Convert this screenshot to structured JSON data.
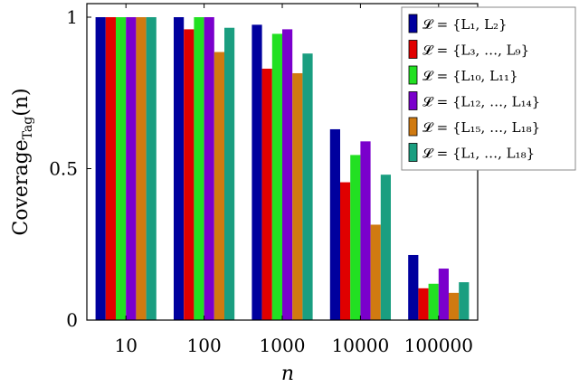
{
  "chart_data": {
    "type": "bar",
    "ylabel": "Coverage",
    "ylabel_sub": "Tag",
    "ylabel_suffix": "(n)",
    "xlabel": "n",
    "categories": [
      "10",
      "100",
      "1000",
      "10000",
      "100000"
    ],
    "ylim": [
      0,
      1.0
    ],
    "yticks": [
      0,
      0.5,
      1
    ],
    "ytick_labels": [
      "0",
      "0.5",
      "1"
    ],
    "grid": false,
    "legend_position": "top-right",
    "series": [
      {
        "name": "𝓛 = {L₁, L₂}",
        "color": "#00009e",
        "values": [
          1.0,
          1.0,
          0.975,
          0.63,
          0.215
        ]
      },
      {
        "name": "𝓛 = {L₃, …, L₉}",
        "color": "#e00000",
        "values": [
          1.0,
          0.96,
          0.83,
          0.455,
          0.105
        ]
      },
      {
        "name": "𝓛 = {L₁₀, L₁₁}",
        "color": "#22e022",
        "values": [
          1.0,
          1.0,
          0.945,
          0.545,
          0.12
        ]
      },
      {
        "name": "𝓛 = {L₁₂, …, L₁₄}",
        "color": "#7a00cc",
        "values": [
          1.0,
          1.0,
          0.96,
          0.59,
          0.17
        ]
      },
      {
        "name": "𝓛 = {L₁₅, …, L₁₈}",
        "color": "#d07a10",
        "values": [
          1.0,
          0.885,
          0.815,
          0.315,
          0.09
        ]
      },
      {
        "name": "𝓛 = {L₁, …, L₁₈}",
        "color": "#1a9e80",
        "values": [
          1.0,
          0.965,
          0.88,
          0.48,
          0.125
        ]
      }
    ]
  }
}
